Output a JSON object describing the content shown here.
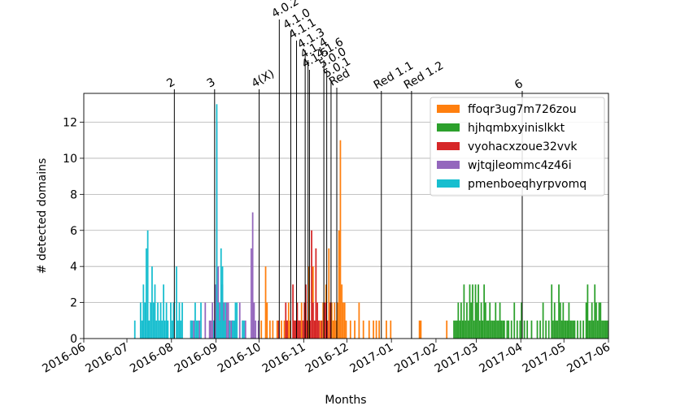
{
  "chart_data": {
    "type": "bar",
    "title": "",
    "xlabel": "Months",
    "ylabel": "# detected domains",
    "xlim": [
      "2016-06-01",
      "2017-06-01"
    ],
    "ylim": [
      0,
      13.6
    ],
    "grid": "horizontal",
    "legend_position": "top-right",
    "x_ticks": [
      "2016-06",
      "2016-07",
      "2016-08",
      "2016-09",
      "2016-10",
      "2016-11",
      "2016-12",
      "2017-01",
      "2017-02",
      "2017-03",
      "2017-04",
      "2017-05",
      "2017-06"
    ],
    "y_ticks": [
      0,
      2,
      4,
      6,
      8,
      10,
      12
    ],
    "version_lines": [
      {
        "label": "2",
        "date": "2016-08-03"
      },
      {
        "label": "3",
        "date": "2016-08-31"
      },
      {
        "label": "4(X)",
        "date": "2016-10-01"
      },
      {
        "label": "4.0.2",
        "date": "2016-10-15"
      },
      {
        "label": "4.1.0",
        "date": "2016-10-23"
      },
      {
        "label": "4.1.1",
        "date": "2016-10-27"
      },
      {
        "label": "4.1.3",
        "date": "2016-11-02"
      },
      {
        "label": "4.1.4",
        "date": "2016-11-04"
      },
      {
        "label": "4.1.5",
        "date": "2016-11-05"
      },
      {
        "label": "4.1.6",
        "date": "2016-11-15"
      },
      {
        "label": "5.0.0",
        "date": "2016-11-17"
      },
      {
        "label": "5.0.1",
        "date": "2016-11-20"
      },
      {
        "label": "Red",
        "date": "2016-11-24"
      },
      {
        "label": "Red 1.1",
        "date": "2016-12-25"
      },
      {
        "label": "Red 1.2",
        "date": "2017-01-15"
      },
      {
        "label": "6",
        "date": "2017-04-02"
      }
    ],
    "series": [
      {
        "name": "ffoqr3ug7m726zou",
        "color": "#ff7f0e",
        "points": [
          [
            "2016-10-02",
            1
          ],
          [
            "2016-10-05",
            4
          ],
          [
            "2016-10-06",
            2
          ],
          [
            "2016-10-08",
            1
          ],
          [
            "2016-10-10",
            1
          ],
          [
            "2016-10-13",
            1
          ],
          [
            "2016-10-16",
            1
          ],
          [
            "2016-10-18",
            1
          ],
          [
            "2016-10-20",
            1
          ],
          [
            "2016-10-21",
            2
          ],
          [
            "2016-10-22",
            1
          ],
          [
            "2016-10-25",
            1
          ],
          [
            "2016-10-28",
            1
          ],
          [
            "2016-10-30",
            2
          ],
          [
            "2016-11-01",
            1
          ],
          [
            "2016-11-02",
            2
          ],
          [
            "2016-11-03",
            1
          ],
          [
            "2016-11-04",
            4
          ],
          [
            "2016-11-07",
            4
          ],
          [
            "2016-11-09",
            1
          ],
          [
            "2016-11-12",
            1
          ],
          [
            "2016-11-14",
            2
          ],
          [
            "2016-11-16",
            3
          ],
          [
            "2016-11-18",
            5
          ],
          [
            "2016-11-20",
            2
          ],
          [
            "2016-11-21",
            1
          ],
          [
            "2016-11-22",
            2
          ],
          [
            "2016-11-23",
            1
          ],
          [
            "2016-11-24",
            2
          ],
          [
            "2016-11-25",
            6
          ],
          [
            "2016-11-26",
            11
          ],
          [
            "2016-11-27",
            3
          ],
          [
            "2016-11-28",
            2
          ],
          [
            "2016-11-29",
            2
          ],
          [
            "2016-11-30",
            1
          ],
          [
            "2016-12-03",
            1
          ],
          [
            "2016-12-06",
            1
          ],
          [
            "2016-12-09",
            2
          ],
          [
            "2016-12-12",
            1
          ],
          [
            "2016-12-16",
            1
          ],
          [
            "2016-12-19",
            1
          ],
          [
            "2016-12-21",
            1
          ],
          [
            "2016-12-23",
            1
          ],
          [
            "2016-12-28",
            1
          ],
          [
            "2016-12-31",
            1
          ],
          [
            "2017-01-20",
            1
          ],
          [
            "2017-01-21",
            1
          ],
          [
            "2017-02-08",
            1
          ]
        ]
      },
      {
        "name": "hjhqmbxyinislkkt",
        "color": "#2ca02c",
        "points": [
          [
            "2017-02-13",
            1
          ],
          [
            "2017-02-14",
            1
          ],
          [
            "2017-02-15",
            1
          ],
          [
            "2017-02-16",
            2
          ],
          [
            "2017-02-17",
            1
          ],
          [
            "2017-02-18",
            2
          ],
          [
            "2017-02-19",
            1
          ],
          [
            "2017-02-20",
            3
          ],
          [
            "2017-02-21",
            1
          ],
          [
            "2017-02-22",
            2
          ],
          [
            "2017-02-23",
            1
          ],
          [
            "2017-02-24",
            3
          ],
          [
            "2017-02-25",
            2
          ],
          [
            "2017-02-26",
            3
          ],
          [
            "2017-02-27",
            1
          ],
          [
            "2017-02-28",
            3
          ],
          [
            "2017-03-01",
            2
          ],
          [
            "2017-03-02",
            3
          ],
          [
            "2017-03-03",
            1
          ],
          [
            "2017-03-04",
            2
          ],
          [
            "2017-03-05",
            1
          ],
          [
            "2017-03-06",
            3
          ],
          [
            "2017-03-07",
            2
          ],
          [
            "2017-03-08",
            1
          ],
          [
            "2017-03-09",
            1
          ],
          [
            "2017-03-10",
            2
          ],
          [
            "2017-03-11",
            1
          ],
          [
            "2017-03-12",
            1
          ],
          [
            "2017-03-13",
            1
          ],
          [
            "2017-03-14",
            2
          ],
          [
            "2017-03-15",
            1
          ],
          [
            "2017-03-16",
            1
          ],
          [
            "2017-03-17",
            2
          ],
          [
            "2017-03-18",
            1
          ],
          [
            "2017-03-19",
            1
          ],
          [
            "2017-03-20",
            1
          ],
          [
            "2017-03-22",
            1
          ],
          [
            "2017-03-23",
            1
          ],
          [
            "2017-03-25",
            1
          ],
          [
            "2017-03-27",
            2
          ],
          [
            "2017-03-29",
            1
          ],
          [
            "2017-03-31",
            1
          ],
          [
            "2017-04-01",
            2
          ],
          [
            "2017-04-03",
            1
          ],
          [
            "2017-04-05",
            1
          ],
          [
            "2017-04-08",
            1
          ],
          [
            "2017-04-12",
            1
          ],
          [
            "2017-04-14",
            1
          ],
          [
            "2017-04-16",
            2
          ],
          [
            "2017-04-18",
            1
          ],
          [
            "2017-04-20",
            1
          ],
          [
            "2017-04-22",
            3
          ],
          [
            "2017-04-23",
            1
          ],
          [
            "2017-04-24",
            2
          ],
          [
            "2017-04-25",
            1
          ],
          [
            "2017-04-26",
            1
          ],
          [
            "2017-04-27",
            3
          ],
          [
            "2017-04-28",
            2
          ],
          [
            "2017-04-29",
            1
          ],
          [
            "2017-04-30",
            2
          ],
          [
            "2017-05-01",
            1
          ],
          [
            "2017-05-02",
            1
          ],
          [
            "2017-05-03",
            1
          ],
          [
            "2017-05-04",
            2
          ],
          [
            "2017-05-05",
            1
          ],
          [
            "2017-05-06",
            1
          ],
          [
            "2017-05-07",
            1
          ],
          [
            "2017-05-08",
            1
          ],
          [
            "2017-05-10",
            1
          ],
          [
            "2017-05-12",
            1
          ],
          [
            "2017-05-14",
            1
          ],
          [
            "2017-05-16",
            2
          ],
          [
            "2017-05-17",
            3
          ],
          [
            "2017-05-18",
            1
          ],
          [
            "2017-05-19",
            1
          ],
          [
            "2017-05-20",
            2
          ],
          [
            "2017-05-21",
            1
          ],
          [
            "2017-05-22",
            3
          ],
          [
            "2017-05-23",
            2
          ],
          [
            "2017-05-24",
            1
          ],
          [
            "2017-05-25",
            2
          ],
          [
            "2017-05-26",
            2
          ],
          [
            "2017-05-27",
            1
          ],
          [
            "2017-05-28",
            1
          ],
          [
            "2017-05-29",
            1
          ],
          [
            "2017-05-30",
            1
          ],
          [
            "2017-05-31",
            1
          ]
        ]
      },
      {
        "name": "vyohacxzoue32vvk",
        "color": "#d62728",
        "points": [
          [
            "2016-10-14",
            1
          ],
          [
            "2016-10-19",
            2
          ],
          [
            "2016-10-20",
            1
          ],
          [
            "2016-10-24",
            3
          ],
          [
            "2016-10-25",
            1
          ],
          [
            "2016-10-26",
            1
          ],
          [
            "2016-10-27",
            2
          ],
          [
            "2016-10-28",
            1
          ],
          [
            "2016-10-29",
            1
          ],
          [
            "2016-10-31",
            1
          ],
          [
            "2016-11-01",
            2
          ],
          [
            "2016-11-02",
            3
          ],
          [
            "2016-11-03",
            1
          ],
          [
            "2016-11-05",
            1
          ],
          [
            "2016-11-06",
            6
          ],
          [
            "2016-11-07",
            2
          ],
          [
            "2016-11-08",
            1
          ],
          [
            "2016-11-09",
            5
          ],
          [
            "2016-11-10",
            2
          ],
          [
            "2016-11-11",
            1
          ],
          [
            "2016-11-13",
            1
          ],
          [
            "2016-11-15",
            2
          ],
          [
            "2016-11-16",
            2
          ],
          [
            "2016-11-17",
            1
          ],
          [
            "2016-11-19",
            2
          ]
        ]
      },
      {
        "name": "wjtqjleommc4z46i",
        "color": "#9467bd",
        "points": [
          [
            "2016-08-14",
            1
          ],
          [
            "2016-08-16",
            1
          ],
          [
            "2016-08-20",
            1
          ],
          [
            "2016-08-24",
            2
          ],
          [
            "2016-08-27",
            1
          ],
          [
            "2016-08-28",
            1
          ],
          [
            "2016-08-29",
            2
          ],
          [
            "2016-08-30",
            1
          ],
          [
            "2016-08-31",
            3
          ],
          [
            "2016-09-01",
            12
          ],
          [
            "2016-09-02",
            4
          ],
          [
            "2016-09-03",
            2
          ],
          [
            "2016-09-04",
            1
          ],
          [
            "2016-09-05",
            3
          ],
          [
            "2016-09-06",
            2
          ],
          [
            "2016-09-07",
            1
          ],
          [
            "2016-09-08",
            2
          ],
          [
            "2016-09-09",
            2
          ],
          [
            "2016-09-10",
            1
          ],
          [
            "2016-09-11",
            1
          ],
          [
            "2016-09-12",
            1
          ],
          [
            "2016-09-14",
            1
          ],
          [
            "2016-09-17",
            2
          ],
          [
            "2016-09-19",
            1
          ],
          [
            "2016-09-21",
            1
          ],
          [
            "2016-09-25",
            5
          ],
          [
            "2016-09-26",
            7
          ],
          [
            "2016-09-27",
            2
          ],
          [
            "2016-09-28",
            1
          ],
          [
            "2016-09-30",
            1
          ]
        ]
      },
      {
        "name": "pmenboeqhyrpvomq",
        "color": "#17becf",
        "points": [
          [
            "2016-07-06",
            1
          ],
          [
            "2016-07-10",
            2
          ],
          [
            "2016-07-11",
            1
          ],
          [
            "2016-07-12",
            3
          ],
          [
            "2016-07-13",
            2
          ],
          [
            "2016-07-14",
            5
          ],
          [
            "2016-07-15",
            6
          ],
          [
            "2016-07-16",
            1
          ],
          [
            "2016-07-17",
            2
          ],
          [
            "2016-07-18",
            4
          ],
          [
            "2016-07-19",
            2
          ],
          [
            "2016-07-20",
            3
          ],
          [
            "2016-07-21",
            1
          ],
          [
            "2016-07-22",
            2
          ],
          [
            "2016-07-23",
            1
          ],
          [
            "2016-07-24",
            2
          ],
          [
            "2016-07-25",
            1
          ],
          [
            "2016-07-26",
            3
          ],
          [
            "2016-07-27",
            1
          ],
          [
            "2016-07-28",
            2
          ],
          [
            "2016-07-29",
            1
          ],
          [
            "2016-07-31",
            2
          ],
          [
            "2016-08-01",
            1
          ],
          [
            "2016-08-02",
            2
          ],
          [
            "2016-08-04",
            4
          ],
          [
            "2016-08-05",
            1
          ],
          [
            "2016-08-06",
            2
          ],
          [
            "2016-08-07",
            1
          ],
          [
            "2016-08-08",
            2
          ],
          [
            "2016-08-14",
            1
          ],
          [
            "2016-08-15",
            1
          ],
          [
            "2016-08-17",
            2
          ],
          [
            "2016-08-18",
            1
          ],
          [
            "2016-08-19",
            1
          ],
          [
            "2016-08-21",
            2
          ],
          [
            "2016-08-30",
            1
          ],
          [
            "2016-09-01",
            13
          ],
          [
            "2016-09-02",
            2
          ],
          [
            "2016-09-03",
            1
          ],
          [
            "2016-09-04",
            5
          ],
          [
            "2016-09-05",
            4
          ],
          [
            "2016-09-06",
            1
          ],
          [
            "2016-09-07",
            2
          ],
          [
            "2016-09-10",
            1
          ],
          [
            "2016-09-12",
            1
          ],
          [
            "2016-09-13",
            1
          ],
          [
            "2016-09-14",
            2
          ],
          [
            "2016-09-15",
            2
          ],
          [
            "2016-09-19",
            1
          ],
          [
            "2016-09-20",
            1
          ]
        ]
      }
    ]
  }
}
